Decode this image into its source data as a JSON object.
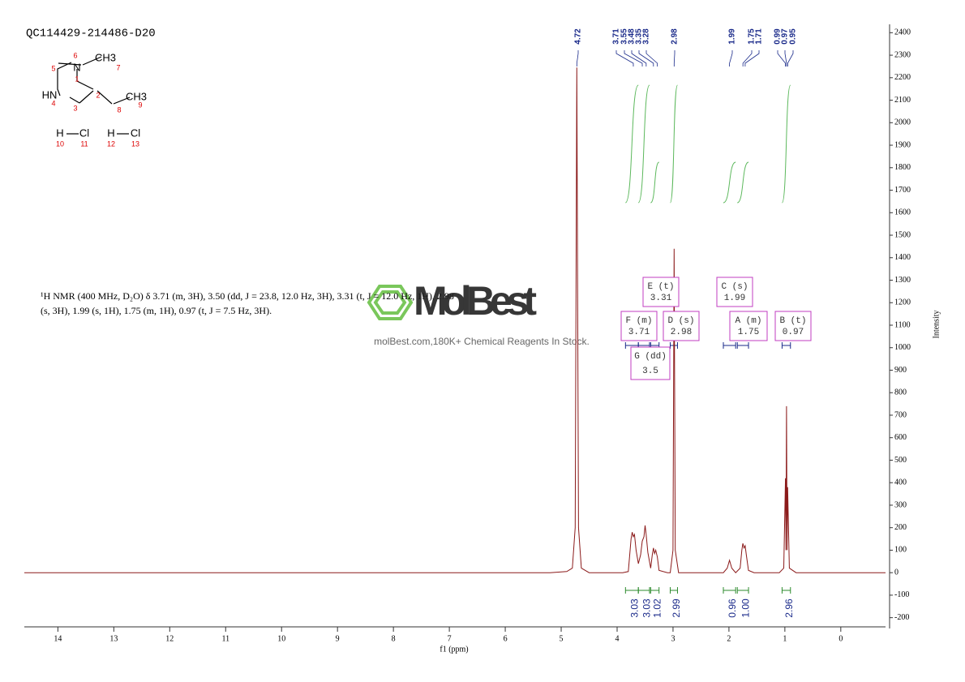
{
  "chart_data": {
    "type": "line",
    "title": "QC114429-214486-D20",
    "xlabel": "f1 (ppm)",
    "ylabel": "Intensity",
    "color": "#8b1a1a",
    "x": [
      14.6,
      5.2,
      4.9,
      4.8,
      4.75,
      4.72,
      4.69,
      4.64,
      4.5,
      3.9,
      3.8,
      3.75,
      3.73,
      3.71,
      3.69,
      3.66,
      3.62,
      3.58,
      3.55,
      3.52,
      3.5,
      3.48,
      3.45,
      3.4,
      3.37,
      3.35,
      3.33,
      3.31,
      3.28,
      3.25,
      3.1,
      3.05,
      3.0,
      2.98,
      2.96,
      2.9,
      2.1,
      2.03,
      1.99,
      1.95,
      1.88,
      1.8,
      1.77,
      1.75,
      1.73,
      1.71,
      1.69,
      1.65,
      1.55,
      1.1,
      1.02,
      0.99,
      0.98,
      0.97,
      0.96,
      0.95,
      0.92,
      0.8,
      -0.8
    ],
    "values": [
      0,
      0,
      5,
      20,
      200,
      2245,
      200,
      20,
      0,
      0,
      5,
      150,
      180,
      160,
      170,
      100,
      40,
      80,
      140,
      160,
      210,
      170,
      90,
      20,
      80,
      110,
      85,
      100,
      70,
      10,
      0,
      0,
      100,
      1440,
      100,
      0,
      0,
      20,
      55,
      20,
      0,
      20,
      100,
      130,
      110,
      120,
      80,
      10,
      0,
      0,
      20,
      420,
      100,
      740,
      100,
      380,
      20,
      0,
      0
    ],
    "xlim": [
      14.6,
      -0.8
    ],
    "xticks": [
      14,
      13,
      12,
      11,
      10,
      9,
      8,
      7,
      6,
      5,
      4,
      3,
      2,
      1,
      0
    ],
    "ylim": [
      -230,
      2430
    ],
    "yticks": [
      -200,
      -100,
      0,
      100,
      200,
      300,
      400,
      500,
      600,
      700,
      800,
      900,
      1000,
      1100,
      1200,
      1300,
      1400,
      1500,
      1600,
      1700,
      1800,
      1900,
      2000,
      2100,
      2200,
      2300,
      2400
    ],
    "peak_labels": [
      4.72,
      3.71,
      3.55,
      3.48,
      3.35,
      3.28,
      2.98,
      1.99,
      1.75,
      1.71,
      0.99,
      0.97,
      0.95
    ],
    "integrals": {
      "ranges": [
        [
          3.85,
          3.62
        ],
        [
          3.62,
          3.42
        ],
        [
          3.4,
          3.25
        ],
        [
          3.05,
          2.92
        ],
        [
          2.1,
          1.88
        ],
        [
          1.85,
          1.65
        ],
        [
          1.05,
          0.9
        ]
      ],
      "values": [
        3.03,
        3.03,
        1.02,
        2.99,
        0.96,
        1.0,
        2.96
      ],
      "value_labels": [
        "3.03",
        "3.03",
        "1.02",
        "2.99",
        "0.96",
        "1.00",
        "2.96"
      ]
    },
    "multiplets": [
      {
        "label": "E (t)",
        "shift": 3.31
      },
      {
        "label": "C (s)",
        "shift": 1.99
      },
      {
        "label": "F (m)",
        "shift": 3.71
      },
      {
        "label": "D (s)",
        "shift": 2.98
      },
      {
        "label": "A (m)",
        "shift": 1.75
      },
      {
        "label": "B (t)",
        "shift": 0.97
      },
      {
        "label": "G (dd)",
        "shift": 3.5
      }
    ],
    "description": [
      "¹H NMR (400 MHz, D₂O) δ 3.71 (m, 3H), 3.50 (dd, J = 23.8, 12.0 Hz, 3H), 3.31 (t, J = 12.0 Hz, 1H), 2.98",
      "(s, 3H), 1.99 (s, 1H), 1.75 (m, 1H), 0.97 (t, J = 7.5 Hz, 3H)."
    ],
    "watermark": {
      "brand": "MolBest",
      "tagline": "molBest.com,180K+ Chemical Reagents In Stock."
    },
    "structure": {
      "atoms": [
        "N",
        "CH3",
        "HN",
        "CH3",
        "H",
        "Cl",
        "H",
        "Cl"
      ],
      "numbers": [
        1,
        2,
        3,
        4,
        5,
        6,
        7,
        8,
        9,
        10,
        11,
        12,
        13
      ]
    }
  }
}
